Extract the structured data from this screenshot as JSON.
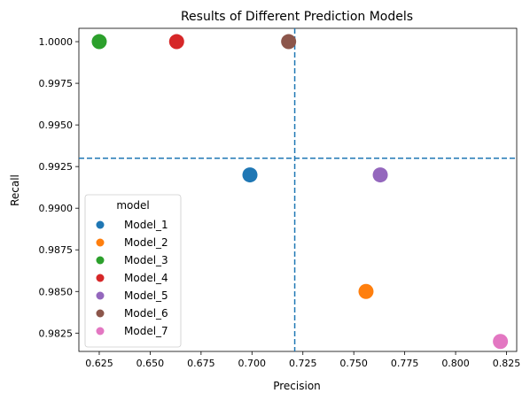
{
  "chart_data": {
    "type": "scatter",
    "title": "Results of Different Prediction Models",
    "xlabel": "Precision",
    "ylabel": "Recall",
    "xlim": [
      0.615,
      0.83
    ],
    "ylim": [
      0.9814,
      1.0008
    ],
    "xticks": [
      0.625,
      0.65,
      0.675,
      0.7,
      0.725,
      0.75,
      0.775,
      0.8,
      0.825
    ],
    "xtick_labels": [
      "0.625",
      "0.650",
      "0.675",
      "0.700",
      "0.725",
      "0.750",
      "0.775",
      "0.800",
      "0.825"
    ],
    "yticks": [
      0.9825,
      0.985,
      0.9875,
      0.99,
      0.9925,
      0.995,
      0.9975,
      1.0
    ],
    "ytick_labels": [
      "0.9825",
      "0.9850",
      "0.9875",
      "0.9900",
      "0.9925",
      "0.9950",
      "0.9975",
      "1.0000"
    ],
    "grid": false,
    "legend": {
      "title": "model",
      "placement": "lower-left"
    },
    "reference_lines": [
      {
        "orientation": "vertical",
        "x": 0.721,
        "style": "dashed",
        "color": "#1f77b4"
      },
      {
        "orientation": "horizontal",
        "y": 0.993,
        "style": "dashed",
        "color": "#1f77b4"
      }
    ],
    "series": [
      {
        "name": "Model_1",
        "color": "#1f77b4",
        "x": 0.699,
        "y": 0.992
      },
      {
        "name": "Model_2",
        "color": "#ff7f0e",
        "x": 0.756,
        "y": 0.985
      },
      {
        "name": "Model_3",
        "color": "#2ca02c",
        "x": 0.625,
        "y": 1.0
      },
      {
        "name": "Model_4",
        "color": "#d62728",
        "x": 0.663,
        "y": 1.0
      },
      {
        "name": "Model_5",
        "color": "#9467bd",
        "x": 0.763,
        "y": 0.992
      },
      {
        "name": "Model_6",
        "color": "#8c564b",
        "x": 0.718,
        "y": 1.0
      },
      {
        "name": "Model_7",
        "color": "#e377c2",
        "x": 0.822,
        "y": 0.982
      }
    ]
  }
}
